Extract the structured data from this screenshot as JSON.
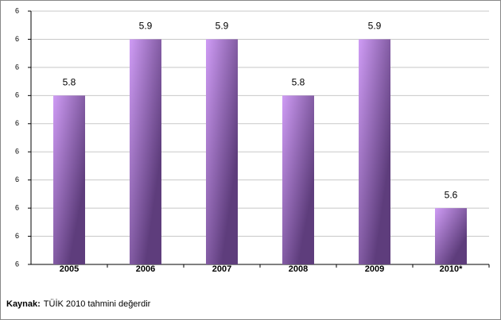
{
  "chart_data": {
    "type": "bar",
    "categories": [
      "2005",
      "2006",
      "2007",
      "2008",
      "2009",
      "2010*"
    ],
    "values": [
      5.8,
      5.9,
      5.9,
      5.8,
      5.9,
      5.6
    ],
    "ylim": [
      5.5,
      5.95
    ],
    "yticks": [
      {
        "value": 5.5,
        "label": "6"
      },
      {
        "value": 5.55,
        "label": "6"
      },
      {
        "value": 5.6,
        "label": "6"
      },
      {
        "value": 5.65,
        "label": "6"
      },
      {
        "value": 5.7,
        "label": "6"
      },
      {
        "value": 5.75,
        "label": "6"
      },
      {
        "value": 5.8,
        "label": "6"
      },
      {
        "value": 5.85,
        "label": "6"
      },
      {
        "value": 5.9,
        "label": "6"
      },
      {
        "value": 5.95,
        "label": "6"
      }
    ],
    "grid": true,
    "colors": [
      "#cf9cf5",
      "#5e3d7c"
    ],
    "source_label": "Kaynak:",
    "source_text": "TÜİK 2010 tahmini değerdir"
  }
}
